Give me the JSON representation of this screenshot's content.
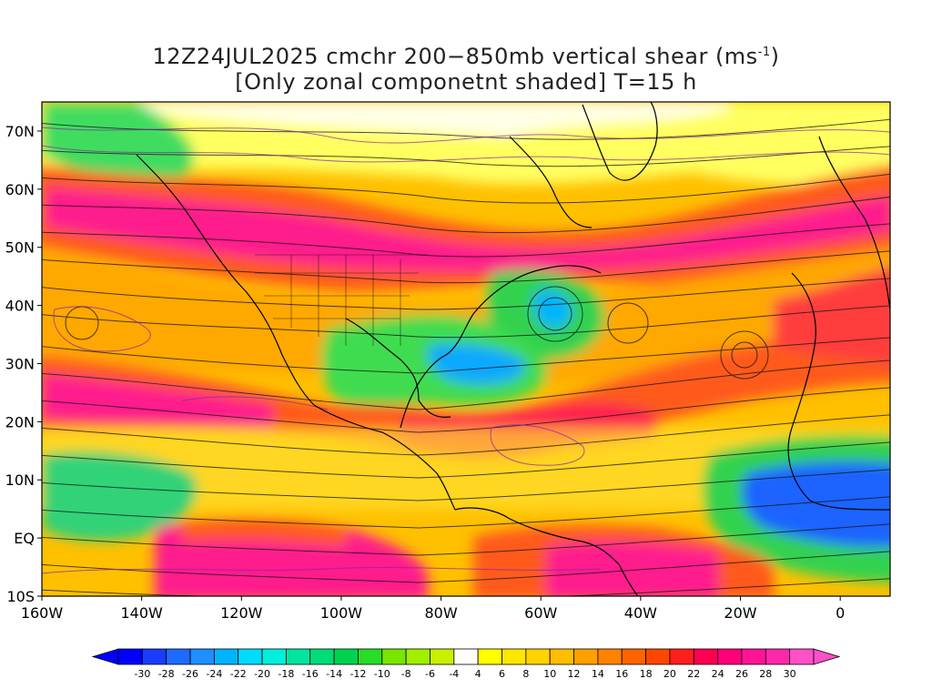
{
  "title": {
    "line1_prefix": "12Z24JUL2025 cmchr 200−850mb vertical shear (ms",
    "line1_sup": "-1",
    "line1_suffix": ")",
    "line2": "[Only zonal componetnt shaded] T=15 h"
  },
  "axes": {
    "lat_labels": [
      "70N",
      "60N",
      "50N",
      "40N",
      "30N",
      "20N",
      "10N",
      "EQ",
      "10S"
    ],
    "lat_values": [
      70,
      60,
      50,
      40,
      30,
      20,
      10,
      0,
      -10
    ],
    "lon_labels": [
      "160W",
      "140W",
      "120W",
      "100W",
      "80W",
      "60W",
      "40W",
      "20W",
      "0"
    ],
    "lon_values": [
      -160,
      -140,
      -120,
      -100,
      -80,
      -60,
      -40,
      -20,
      0
    ],
    "lon_range": [
      -160,
      10
    ],
    "lat_range": [
      -10,
      75
    ]
  },
  "colorbar": {
    "labels": [
      "-30",
      "-28",
      "-26",
      "-24",
      "-22",
      "-20",
      "-18",
      "-16",
      "-14",
      "-12",
      "-10",
      "-8",
      "-6",
      "-4",
      "4",
      "6",
      "8",
      "10",
      "12",
      "14",
      "16",
      "18",
      "20",
      "22",
      "24",
      "26",
      "28",
      "30"
    ],
    "colors": [
      "#0000ff",
      "#1a3cff",
      "#1d6bff",
      "#1f8eff",
      "#00b4ff",
      "#00dcff",
      "#00f0dc",
      "#00e6a0",
      "#00dc78",
      "#00d250",
      "#28dc28",
      "#78e600",
      "#a0f000",
      "#c8f000",
      "#ffffff",
      "#ffff00",
      "#ffe600",
      "#ffd200",
      "#ffbe00",
      "#ffa000",
      "#ff8200",
      "#ff6400",
      "#ff4600",
      "#ff1e1e",
      "#ff0050",
      "#ff0078",
      "#ff1496",
      "#ff28aa",
      "#ff50c8"
    ]
  },
  "colors": {
    "vector_lines": "#111111",
    "contours": "#8a1fa8",
    "coastlines": "#000000"
  }
}
